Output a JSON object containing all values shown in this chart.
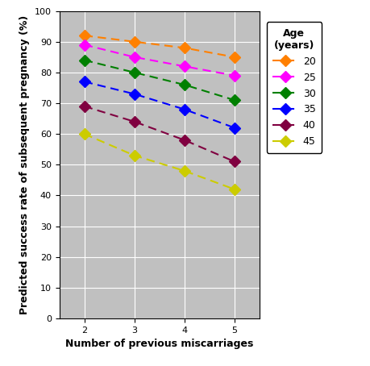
{
  "x": [
    2,
    3,
    4,
    5
  ],
  "series": [
    {
      "label": "20",
      "color": "#FF8000",
      "values": [
        92,
        90,
        88,
        85
      ]
    },
    {
      "label": "25",
      "color": "#FF00FF",
      "values": [
        89,
        85,
        82,
        79
      ]
    },
    {
      "label": "30",
      "color": "#008000",
      "values": [
        84,
        80,
        76,
        71
      ]
    },
    {
      "label": "35",
      "color": "#0000FF",
      "values": [
        77,
        73,
        68,
        62
      ]
    },
    {
      "label": "40",
      "color": "#800040",
      "values": [
        69,
        64,
        58,
        51
      ]
    },
    {
      "label": "45",
      "color": "#CCCC00",
      "values": [
        60,
        53,
        48,
        42
      ]
    }
  ],
  "xlabel": "Number of previous miscarriages",
  "ylabel": "Predicted success rate of subsequent pregnancy (%)",
  "legend_title": "Age\n(years)",
  "ylim": [
    0,
    100
  ],
  "xlim": [
    1.5,
    5.5
  ],
  "yticks": [
    0,
    10,
    20,
    30,
    40,
    50,
    60,
    70,
    80,
    90,
    100
  ],
  "xticks": [
    2,
    3,
    4,
    5
  ],
  "background_color": "#C0C0C0",
  "grid_color": "#FFFFFF",
  "fig_width": 4.6,
  "fig_height": 4.54
}
